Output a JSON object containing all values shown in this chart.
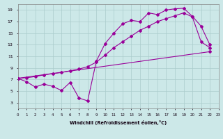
{
  "bg_color": "#cce8e8",
  "grid_color": "#aacccc",
  "line_color": "#990099",
  "xlabel": "Windchill (Refroidissement éolien,°C)",
  "series1_x": [
    0,
    1,
    2,
    3,
    4,
    5,
    6,
    7,
    8,
    9,
    10,
    11,
    12,
    13,
    14,
    15,
    16,
    17,
    18,
    19,
    20,
    21,
    22
  ],
  "series1_y": [
    7.2,
    6.6,
    5.7,
    6.2,
    5.8,
    5.1,
    6.5,
    3.8,
    3.3,
    10.2,
    13.2,
    15.0,
    16.6,
    17.2,
    17.0,
    18.5,
    18.2,
    19.0,
    19.2,
    19.3,
    17.9,
    16.2,
    13.0
  ],
  "series2_x": [
    0,
    1,
    2,
    3,
    4,
    5,
    6,
    7,
    8,
    9,
    10,
    11,
    12,
    13,
    14,
    15,
    16,
    17,
    18,
    19,
    20,
    21,
    22
  ],
  "series2_y": [
    7.2,
    7.3,
    7.5,
    7.8,
    8.0,
    8.2,
    8.5,
    8.8,
    9.2,
    10.0,
    11.2,
    12.5,
    13.5,
    14.5,
    15.5,
    16.2,
    17.0,
    17.5,
    18.0,
    18.5,
    17.8,
    13.5,
    12.5
  ],
  "series3_x": [
    0,
    22
  ],
  "series3_y": [
    7.2,
    11.8
  ],
  "xlim": [
    0,
    23
  ],
  "ylim": [
    2,
    20
  ],
  "yticks": [
    3,
    5,
    7,
    9,
    11,
    13,
    15,
    17,
    19
  ],
  "xticks": [
    0,
    1,
    2,
    3,
    4,
    5,
    6,
    7,
    8,
    9,
    10,
    11,
    12,
    13,
    14,
    15,
    16,
    17,
    18,
    19,
    20,
    21,
    22,
    23
  ],
  "xlabel_fontsize": 4.8,
  "tick_fontsize_x": 4.0,
  "tick_fontsize_y": 4.5,
  "linewidth": 0.8,
  "markersize": 2.0
}
